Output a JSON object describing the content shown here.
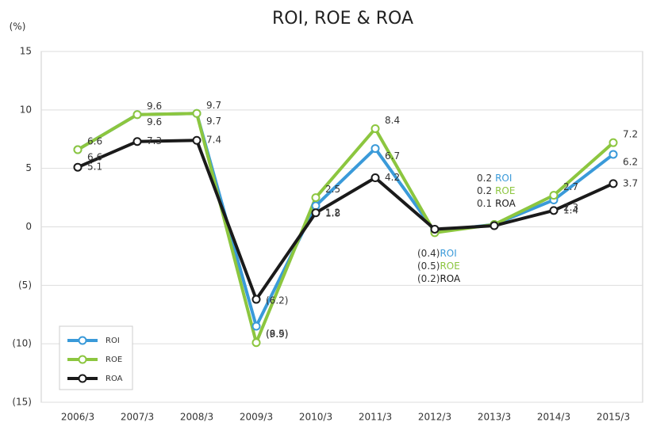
{
  "chart_data": {
    "type": "line",
    "title": "ROI, ROE & ROA",
    "y_unit": "(%)",
    "categories": [
      "2006/3",
      "2007/3",
      "2008/3",
      "2009/3",
      "2010/3",
      "2011/3",
      "2012/3",
      "2013/3",
      "2014/3",
      "2015/3"
    ],
    "series": [
      {
        "name": "ROI",
        "color": "#3a9ad9",
        "values": [
          6.6,
          9.6,
          9.7,
          -8.5,
          1.8,
          6.7,
          -0.4,
          0.2,
          2.3,
          6.2
        ],
        "value_labels": [
          "6.6",
          "9.6",
          "9.7",
          "(8.5)",
          "1.8",
          "6.7",
          "(0.4)",
          "0.2",
          "2.3",
          "6.2"
        ]
      },
      {
        "name": "ROE",
        "color": "#8cc63f",
        "values": [
          6.6,
          9.6,
          9.7,
          -9.9,
          2.5,
          8.4,
          -0.5,
          0.2,
          2.7,
          7.2
        ],
        "value_labels": [
          "6.6",
          "9.6",
          "9.7",
          "(9.9)",
          "2.5",
          "8.4",
          "(0.5)",
          "0.2",
          "2.7",
          "7.2"
        ]
      },
      {
        "name": "ROA",
        "color": "#1a1a1a",
        "values": [
          5.1,
          7.3,
          7.4,
          -6.2,
          1.2,
          4.2,
          -0.2,
          0.1,
          1.4,
          3.7
        ],
        "value_labels": [
          "5.1",
          "7.3",
          "7.4",
          "(6.2)",
          "1.2",
          "4.2",
          "(0.2)",
          "0.1",
          "1.4",
          "3.7"
        ]
      }
    ],
    "ylim": [
      -15,
      15
    ],
    "yticks": [
      15,
      10,
      5,
      0,
      {
        "value": -5,
        "label": "(5)"
      },
      {
        "value": -10,
        "label": "(10)"
      },
      {
        "value": -15,
        "label": "(15)"
      }
    ],
    "grid": true,
    "legend": "lower left"
  }
}
